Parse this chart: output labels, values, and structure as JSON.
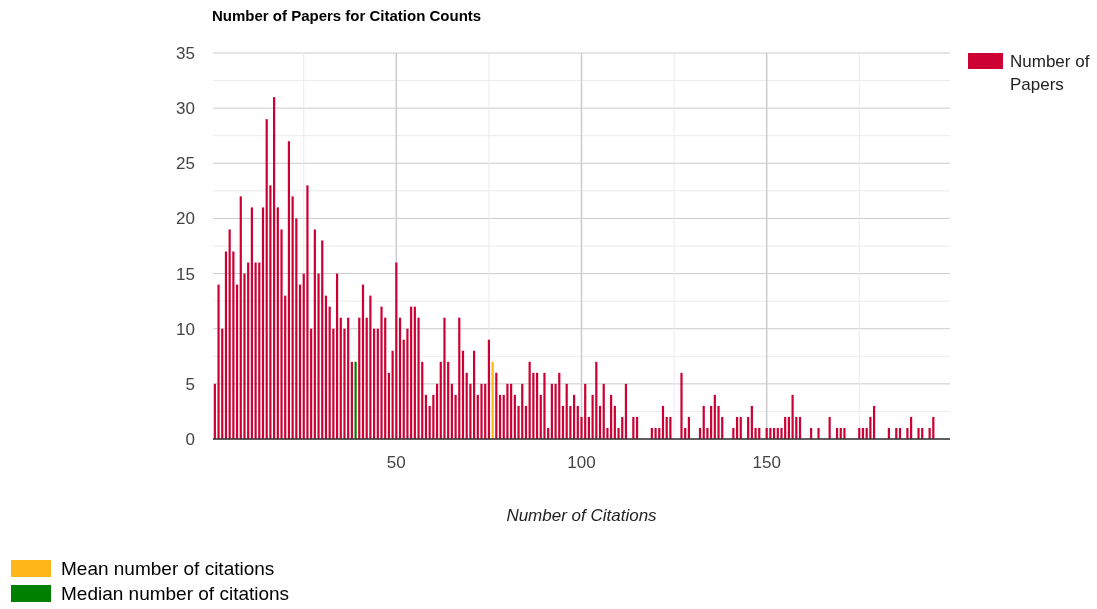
{
  "chart_data": {
    "type": "bar",
    "title": "Number of Papers for Citation Counts",
    "xlabel": "Number of Citations",
    "xlim": [
      0.5,
      199.5
    ],
    "xticks": [
      {
        "value": 25,
        "label": null
      },
      50,
      {
        "value": 75,
        "label": null
      },
      100,
      {
        "value": 125,
        "label": null
      },
      150,
      {
        "value": 175,
        "label": null
      }
    ],
    "ylim": [
      0,
      35
    ],
    "yticks": [
      0,
      {
        "value": 2.5,
        "label": null
      },
      5,
      {
        "value": 7.5,
        "label": null
      },
      10,
      {
        "value": 12.5,
        "label": null
      },
      15,
      {
        "value": 17.5,
        "label": null
      },
      20,
      {
        "value": 22.5,
        "label": null
      },
      25,
      {
        "value": 27.5,
        "label": null
      },
      30,
      {
        "value": 32.5,
        "label": null
      },
      35
    ],
    "grid": true,
    "legend": "right",
    "series": [
      {
        "name": "Number of Papers",
        "color": "#cc0033",
        "x": [
          1,
          2,
          3,
          4,
          5,
          6,
          7,
          8,
          9,
          10,
          11,
          12,
          13,
          14,
          15,
          16,
          17,
          18,
          19,
          20,
          21,
          22,
          23,
          24,
          25,
          26,
          27,
          28,
          29,
          30,
          31,
          32,
          33,
          34,
          35,
          36,
          37,
          38,
          40,
          41,
          42,
          43,
          44,
          45,
          46,
          47,
          48,
          49,
          50,
          51,
          52,
          53,
          54,
          55,
          56,
          57,
          58,
          59,
          60,
          61,
          62,
          63,
          64,
          65,
          66,
          67,
          68,
          69,
          70,
          71,
          72,
          73,
          74,
          75,
          77,
          78,
          79,
          80,
          81,
          82,
          83,
          84,
          85,
          86,
          87,
          88,
          89,
          90,
          91,
          92,
          93,
          94,
          95,
          96,
          97,
          98,
          99,
          100,
          101,
          102,
          103,
          104,
          105,
          106,
          107,
          108,
          109,
          110,
          111,
          112,
          114,
          115,
          119,
          120,
          121,
          122,
          123,
          124,
          127,
          128,
          129,
          132,
          133,
          134,
          135,
          136,
          137,
          138,
          141,
          142,
          143,
          145,
          146,
          147,
          148,
          150,
          151,
          152,
          153,
          154,
          155,
          156,
          157,
          158,
          159,
          162,
          164,
          167,
          169,
          170,
          171,
          175,
          176,
          177,
          178,
          179,
          183,
          185,
          186,
          188,
          189,
          191,
          192,
          194,
          195
        ],
        "values": [
          5,
          14,
          10,
          17,
          19,
          17,
          14,
          22,
          15,
          16,
          21,
          16,
          16,
          21,
          29,
          23,
          31,
          21,
          19,
          13,
          27,
          22,
          20,
          14,
          15,
          23,
          10,
          19,
          15,
          18,
          13,
          12,
          10,
          15,
          11,
          10,
          11,
          7,
          11,
          14,
          11,
          13,
          10,
          10,
          12,
          11,
          6,
          8,
          16,
          11,
          9,
          10,
          12,
          12,
          11,
          7,
          4,
          3,
          4,
          5,
          7,
          11,
          7,
          5,
          4,
          11,
          8,
          6,
          5,
          8,
          4,
          5,
          5,
          9,
          6,
          4,
          4,
          5,
          5,
          4,
          3,
          5,
          3,
          7,
          6,
          6,
          4,
          6,
          1,
          5,
          5,
          6,
          3,
          5,
          3,
          4,
          3,
          2,
          5,
          2,
          4,
          7,
          3,
          5,
          1,
          4,
          3,
          1,
          2,
          5,
          2,
          2,
          1,
          1,
          1,
          3,
          2,
          2,
          6,
          1,
          2,
          1,
          3,
          1,
          3,
          4,
          3,
          2,
          1,
          2,
          2,
          2,
          3,
          1,
          1,
          1,
          1,
          1,
          1,
          1,
          2,
          2,
          4,
          2,
          2,
          1,
          1,
          2,
          1,
          1,
          1,
          1,
          1,
          1,
          2,
          3,
          1,
          1,
          1,
          1,
          2,
          1,
          1,
          1,
          2
        ]
      },
      {
        "name": "Mean number of citations",
        "color": "#ffb618",
        "x": [
          76
        ],
        "values": [
          7
        ]
      },
      {
        "name": "Median number of citations",
        "color": "#008000",
        "x": [
          39
        ],
        "values": [
          7
        ]
      }
    ]
  }
}
